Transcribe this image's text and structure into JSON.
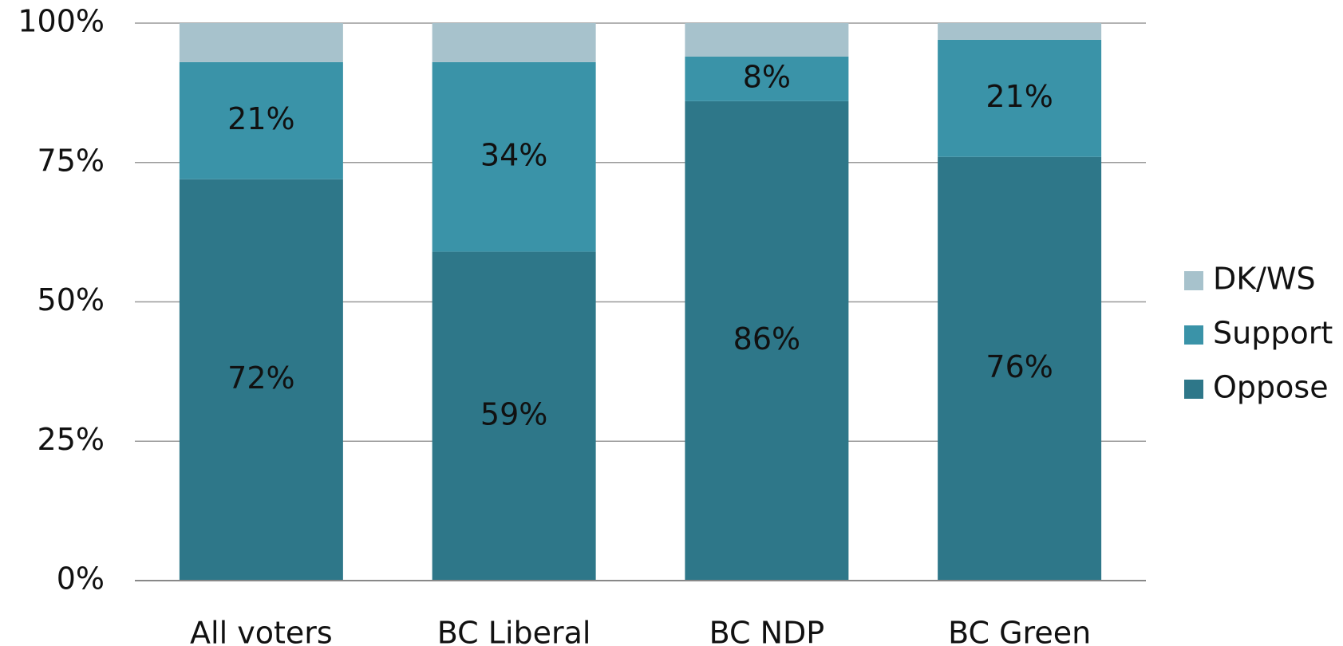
{
  "chart_data": {
    "type": "stacked_bar",
    "categories": [
      "All voters",
      "BC Liberal",
      "BC NDP",
      "BC Green"
    ],
    "series": [
      {
        "name": "Oppose",
        "color": "#2e7789",
        "values": [
          72,
          59,
          86,
          76
        ],
        "value_labels": [
          "72%",
          "59%",
          "86%",
          "76%"
        ]
      },
      {
        "name": "Support",
        "color": "#3a93a8",
        "values": [
          21,
          34,
          8,
          21
        ],
        "value_labels": [
          "21%",
          "34%",
          "8%",
          "21%"
        ]
      },
      {
        "name": "DK/WS",
        "color": "#a7c2cc",
        "values": [
          7,
          7,
          6,
          3
        ]
      }
    ],
    "ylim": [
      0,
      100
    ],
    "yticks": [
      {
        "value": 0,
        "label": "0%"
      },
      {
        "value": 25,
        "label": "25%"
      },
      {
        "value": 50,
        "label": "50%"
      },
      {
        "value": 75,
        "label": "75%"
      },
      {
        "value": 100,
        "label": "100%"
      }
    ],
    "grid": true,
    "legend": "right"
  }
}
